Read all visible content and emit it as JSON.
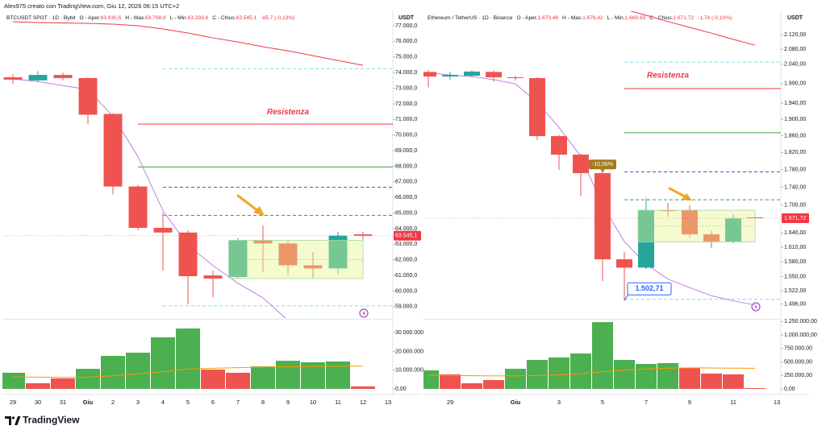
{
  "header": "Alex975 creato con TradingView.com, Giu 12, 2026 06:15 UTC+2",
  "footer": "TradingView",
  "chart_data": [
    {
      "type": "candlestick",
      "legend": {
        "symbol": "BTCUSDT SPOT · 1D · Bybit",
        "items": [
          {
            "label": "O - Aper.",
            "value": "63.630,6"
          },
          {
            "label": "H - Max.",
            "value": "63.798,6"
          },
          {
            "label": "L - Min.",
            "value": "63.293,6"
          },
          {
            "label": "C - Chius.",
            "value": "63.545,1"
          }
        ],
        "change": "-85,7 (-0,13%)"
      },
      "axis_label": "USDT",
      "categories": [
        "29",
        "30",
        "31",
        "Giu",
        "2",
        "3",
        "4",
        "5",
        "6",
        "7",
        "8",
        "9",
        "10",
        "11",
        "12",
        "13"
      ],
      "open": [
        73700,
        73500,
        73850,
        73650,
        71350,
        66700,
        64050,
        63750,
        61000,
        60900,
        63250,
        63050,
        61650,
        61450,
        63630.6,
        null
      ],
      "high": [
        73900,
        74100,
        74000,
        73700,
        71400,
        66800,
        65000,
        63900,
        61300,
        63400,
        64200,
        63200,
        62500,
        63800,
        63798.6,
        null
      ],
      "low": [
        73300,
        73400,
        73500,
        70700,
        66200,
        63900,
        61300,
        59150,
        59600,
        60800,
        61200,
        61000,
        60800,
        61100,
        63293.6,
        null
      ],
      "close": [
        73550,
        73850,
        73650,
        71300,
        66700,
        64050,
        63750,
        60950,
        60800,
        63250,
        63050,
        61650,
        61450,
        63550,
        63545.1,
        null
      ],
      "up_color": "#26a69a",
      "down_color": "#ef5350",
      "ylim": [
        58270,
        77930
      ],
      "log": false,
      "yticks": [
        {
          "value": 77000,
          "label": "77.000,0"
        },
        {
          "value": 76000,
          "label": "76.000,0"
        },
        {
          "value": 75000,
          "label": "75.000,0"
        },
        {
          "value": 74000,
          "label": "74.000,0"
        },
        {
          "value": 73000,
          "label": "73.000,0"
        },
        {
          "value": 72000,
          "label": "72.000,0"
        },
        {
          "value": 71000,
          "label": "71.000,0"
        },
        {
          "value": 70000,
          "label": "70.000,0"
        },
        {
          "value": 69000,
          "label": "69.000,0"
        },
        {
          "value": 68000,
          "label": "68.000,0"
        },
        {
          "value": 67000,
          "label": "67.000,0"
        },
        {
          "value": 66000,
          "label": "66.000,0"
        },
        {
          "value": 65000,
          "label": "65.000,0"
        },
        {
          "value": 64000,
          "label": "64.000,0"
        },
        {
          "value": 63000,
          "label": "63.000,0"
        },
        {
          "value": 62000,
          "label": "62.000,0"
        },
        {
          "value": 61000,
          "label": "61.000,0"
        },
        {
          "value": 60000,
          "label": "60.000,0"
        },
        {
          "value": 59000,
          "label": "59.000,0"
        }
      ],
      "volume": [
        8600000,
        3000000,
        5600000,
        10700000,
        17600000,
        19300000,
        27500000,
        32200000,
        10300000,
        8600000,
        12000000,
        15000000,
        14200000,
        14600000,
        1300000,
        null
      ],
      "volume_colors": [
        "#4caf50",
        "#ef5350",
        "#ef5350",
        "#4caf50",
        "#4caf50",
        "#4caf50",
        "#4caf50",
        "#4caf50",
        "#ef5350",
        "#ef5350",
        "#4caf50",
        "#4caf50",
        "#4caf50",
        "#4caf50",
        "#ef5350",
        null
      ],
      "vlim": [
        0,
        36500000
      ],
      "vticks": [
        {
          "value": 30000000,
          "label": "30.000.000"
        },
        {
          "value": 20000000,
          "label": "20.000.000"
        },
        {
          "value": 10000000,
          "label": "10.000.000"
        },
        {
          "value": 0,
          "label": "0,00"
        }
      ],
      "volume_ma": {
        "color": "#ff9800",
        "values": [
          6400000,
          6300000,
          6100000,
          6200000,
          7000000,
          8000000,
          9200000,
          10600000,
          11000000,
          11300000,
          11600000,
          11800000,
          12000000,
          12100000,
          12200000,
          null
        ]
      },
      "ma": [
        {
          "color": "#f23645",
          "values": [
            77259,
            77207,
            77181,
            77155,
            77103,
            77000,
            76793,
            76535,
            76224,
            75965,
            75655,
            75396,
            75086,
            74776,
            74466,
            null
          ]
        },
        {
          "color": "#c07ee0",
          "values": [
            73586,
            73430,
            73172,
            72913,
            71206,
            68619,
            65153,
            62929,
            61635,
            60497,
            59566,
            58120,
            null,
            null,
            null,
            null
          ]
        }
      ],
      "levels": [
        {
          "value": 74250,
          "start": 6,
          "color": "#80deea",
          "dash": true
        },
        {
          "value": 70700,
          "start": 5,
          "color": "#f23645",
          "dash": false
        },
        {
          "value": 67950,
          "start": 5,
          "color": "#43a047",
          "dash": false
        },
        {
          "value": 66650,
          "start": 6,
          "color": "#3f51b5",
          "dash": true
        },
        {
          "value": 64850,
          "start": 6,
          "color": "#43a047",
          "dash": true
        },
        {
          "value": 59050,
          "start": 6,
          "color": "#80deea",
          "dash": true
        }
      ],
      "box": {
        "from": 9,
        "to": 14,
        "top": 63250,
        "bottom": 60800
      },
      "annotations": [
        {
          "text": "Resistenza",
          "x": 11,
          "y": 71460,
          "color": "#f23645"
        }
      ],
      "price_label": {
        "label": "63.545,1",
        "color": "#f23645"
      }
    },
    {
      "type": "candlestick",
      "legend": {
        "symbol": "Ethereum / TetherUS · 1D · Binance",
        "items": [
          {
            "label": "O - Aper.",
            "value": "1.673,46"
          },
          {
            "label": "H - Max.",
            "value": "1.678,42"
          },
          {
            "label": "L - Min.",
            "value": "1.669,93"
          },
          {
            "label": "C - Chius.",
            "value": "1.671,72"
          }
        ],
        "change": "-1,74 (-0,10%)"
      },
      "axis_label": "USDT",
      "categories": [
        null,
        "29",
        null,
        null,
        "Giu",
        null,
        "3",
        null,
        "5",
        null,
        "7",
        null,
        "9",
        null,
        "11",
        null,
        "13"
      ],
      "open": [
        2020,
        2008,
        2010,
        2020,
        2006,
        2004,
        1859,
        1815,
        1772,
        1585,
        1568,
        1689,
        1689,
        1637,
        1622,
        1673.46,
        null
      ],
      "high": [
        2025,
        2020,
        2024,
        2024,
        2010,
        2006,
        1862,
        1818,
        1775,
        1600,
        1716,
        1705,
        1700,
        1645,
        1680,
        1678.42,
        null
      ],
      "low": [
        1980,
        2000,
        2006,
        1995,
        1998,
        1850,
        1780,
        1720,
        1541,
        1502.71,
        1565,
        1675,
        1630,
        1608,
        1618,
        1669.93,
        null
      ],
      "close": [
        2008,
        2012,
        2021,
        2006,
        2004,
        1859,
        1815,
        1772,
        1585,
        1568,
        1689,
        1687,
        1637,
        1622,
        1671,
        1671.72,
        null
      ],
      "up_color": "#26a69a",
      "down_color": "#ef5350",
      "ylim": [
        1469,
        2185
      ],
      "log": true,
      "yticks": [
        {
          "value": 2120,
          "label": "2.120,00"
        },
        {
          "value": 2080,
          "label": "2.080,00"
        },
        {
          "value": 2040,
          "label": "2.040,00"
        },
        {
          "value": 1990,
          "label": "1.990,00"
        },
        {
          "value": 1940,
          "label": "1.940,00"
        },
        {
          "value": 1900,
          "label": "1.900,00"
        },
        {
          "value": 1860,
          "label": "1.860,00"
        },
        {
          "value": 1820,
          "label": "1.820,00"
        },
        {
          "value": 1780,
          "label": "1.780,00"
        },
        {
          "value": 1740,
          "label": "1.740,00"
        },
        {
          "value": 1700,
          "label": "1.700,00"
        },
        {
          "value": 1640,
          "label": "1.640,00"
        },
        {
          "value": 1610,
          "label": "1.610,00"
        },
        {
          "value": 1580,
          "label": "1.580,00"
        },
        {
          "value": 1550,
          "label": "1.550,00"
        },
        {
          "value": 1522,
          "label": "1.522,00"
        },
        {
          "value": 1496,
          "label": "1.496,00"
        }
      ],
      "volume": [
        343000,
        269000,
        104000,
        164000,
        373000,
        537000,
        582000,
        657000,
        1239000,
        537000,
        463000,
        478000,
        388000,
        284000,
        269000,
        15000,
        null
      ],
      "volume_colors": [
        "#4caf50",
        "#ef5350",
        "#ef5350",
        "#ef5350",
        "#4caf50",
        "#4caf50",
        "#4caf50",
        "#4caf50",
        "#4caf50",
        "#4caf50",
        "#4caf50",
        "#4caf50",
        "#ef5350",
        "#ef5350",
        "#ef5350",
        "#ef5350",
        null
      ],
      "vlim": [
        0,
        1270000
      ],
      "vticks": [
        {
          "value": 1250000,
          "label": "1.250.000,00"
        },
        {
          "value": 1000000,
          "label": "1.000.000,00"
        },
        {
          "value": 750000,
          "label": "750.000,00"
        },
        {
          "value": 500000,
          "label": "500.000,00"
        },
        {
          "value": 250000,
          "label": "250.000,00"
        },
        {
          "value": 0,
          "label": "0,00"
        }
      ],
      "volume_ma": {
        "color": "#ff9800",
        "values": [
          254000,
          250000,
          245000,
          240000,
          240000,
          248000,
          262000,
          280000,
          320000,
          345000,
          370000,
          385000,
          390000,
          388000,
          385000,
          382000,
          null
        ]
      },
      "ma": [
        {
          "color": "#f23645",
          "values": [
            null,
            null,
            null,
            null,
            null,
            null,
            null,
            null,
            null,
            2190,
            2174,
            2156,
            2140,
            2124,
            2107,
            2091,
            null
          ]
        },
        {
          "color": "#c07ee0",
          "values": [
            2018,
            2012,
            2008,
            2000,
            1989,
            1942,
            1880,
            1811,
            1700,
            1622,
            1575,
            1545,
            1528,
            1512,
            1502,
            1494,
            null
          ]
        }
      ],
      "levels": [
        {
          "value": 2046,
          "start": 9,
          "color": "#80deea",
          "dash": true
        },
        {
          "value": 1977,
          "start": 9,
          "color": "#f23645",
          "dash": false
        },
        {
          "value": 1867,
          "start": 9,
          "color": "#43a047",
          "dash": false
        },
        {
          "value": 1775,
          "start": 9,
          "color": "#3f51b5",
          "dash": true
        },
        {
          "value": 1712,
          "start": 9,
          "color": "#43a047",
          "dash": true
        },
        {
          "value": 1505,
          "start": 9,
          "color": "#80deea",
          "dash": true
        }
      ],
      "box": {
        "from": 10,
        "to": 15,
        "top": 1689,
        "bottom": 1621
      },
      "annotations": [
        {
          "text": "Resistenza",
          "x": 11,
          "y": 2011,
          "color": "#f23645"
        },
        {
          "text": "-10,56%",
          "x": 8,
          "y": 1792,
          "color": "#ffffff",
          "background": "#a57a1e"
        }
      ],
      "callout": {
        "label": "1.502,71",
        "x": 9,
        "color": "#2962ff"
      },
      "price_label": {
        "label": "1.671,72",
        "color": "#f23645"
      }
    }
  ]
}
